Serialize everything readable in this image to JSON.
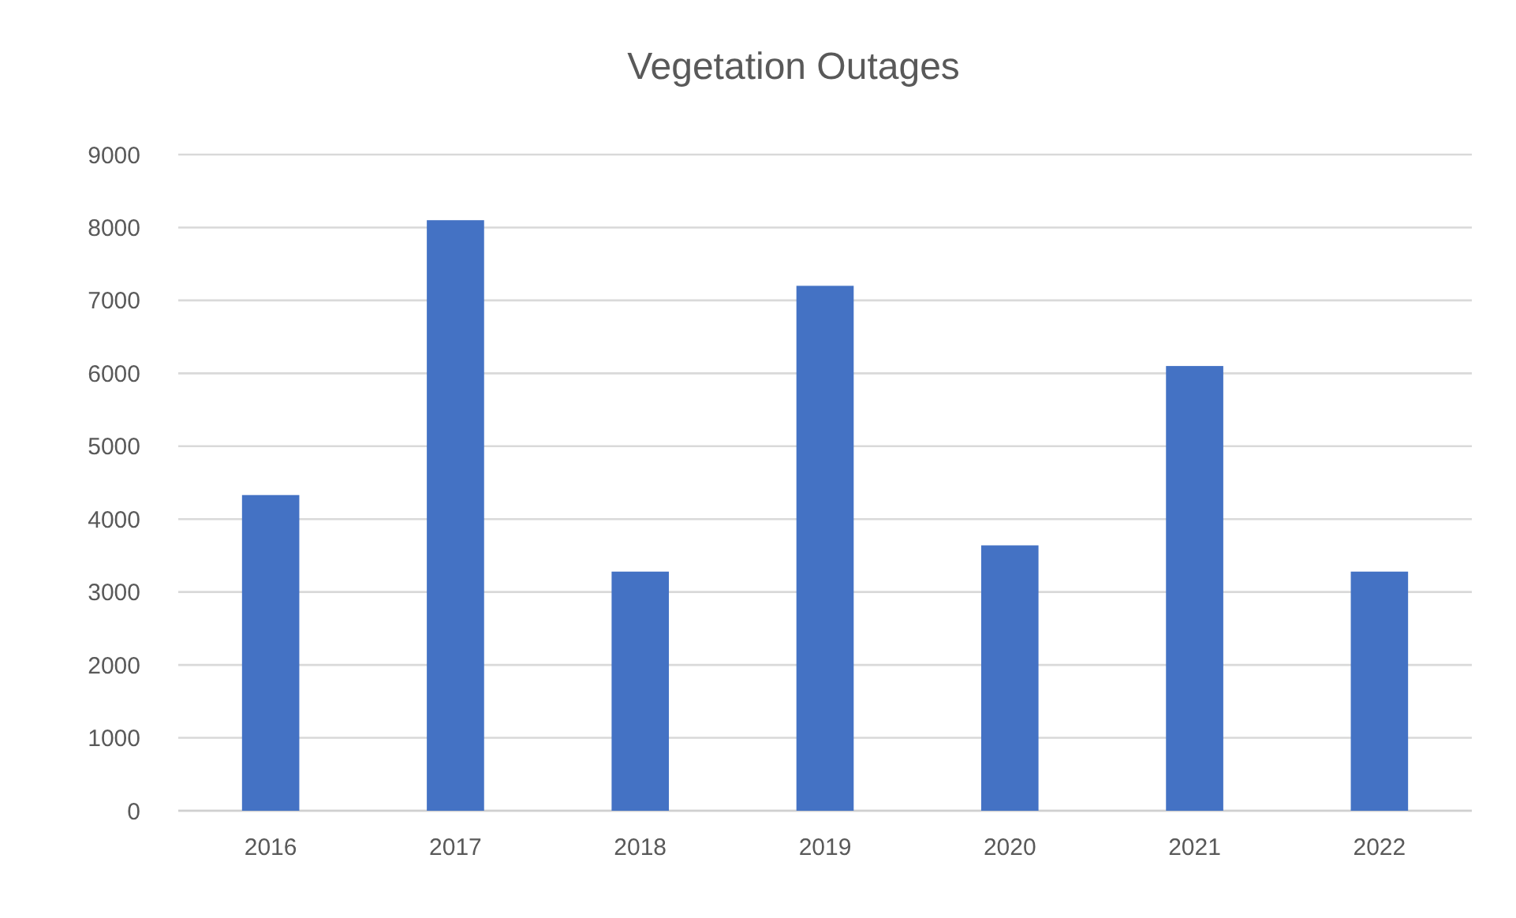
{
  "chart_data": {
    "type": "bar",
    "title": "Vegetation Outages",
    "categories": [
      "2016",
      "2017",
      "2018",
      "2019",
      "2020",
      "2021",
      "2022"
    ],
    "values": [
      4330,
      8100,
      3280,
      7200,
      3640,
      6100,
      3280
    ],
    "color": "#4472c4",
    "ylim": [
      0,
      9000
    ],
    "yticks": [
      0,
      1000,
      2000,
      3000,
      4000,
      5000,
      6000,
      7000,
      8000,
      9000
    ],
    "grid": "y"
  }
}
